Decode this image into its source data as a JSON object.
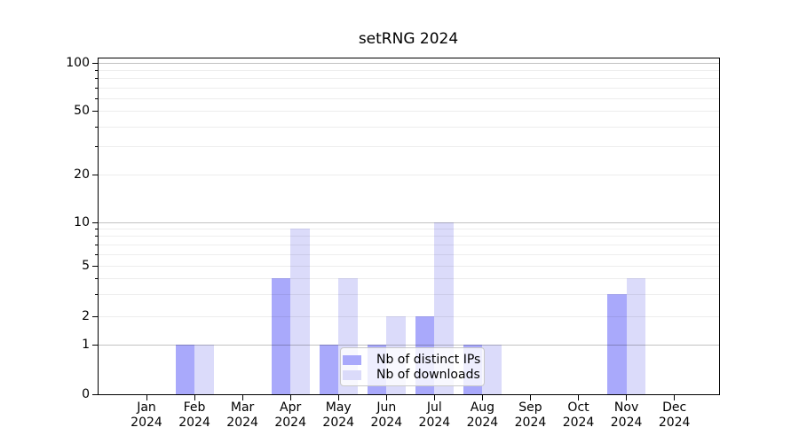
{
  "chart_data": {
    "type": "bar",
    "title": "setRNG 2024",
    "x": [
      {
        "month": "Jan",
        "year": "2024"
      },
      {
        "month": "Feb",
        "year": "2024"
      },
      {
        "month": "Mar",
        "year": "2024"
      },
      {
        "month": "Apr",
        "year": "2024"
      },
      {
        "month": "May",
        "year": "2024"
      },
      {
        "month": "Jun",
        "year": "2024"
      },
      {
        "month": "Jul",
        "year": "2024"
      },
      {
        "month": "Aug",
        "year": "2024"
      },
      {
        "month": "Sep",
        "year": "2024"
      },
      {
        "month": "Oct",
        "year": "2024"
      },
      {
        "month": "Nov",
        "year": "2024"
      },
      {
        "month": "Dec",
        "year": "2024"
      }
    ],
    "series": [
      {
        "name": "Nb of distinct IPs",
        "color": "#a9a9fb",
        "values": [
          0,
          1,
          0,
          4,
          1,
          1,
          2,
          1,
          0,
          0,
          3,
          0
        ]
      },
      {
        "name": "Nb of downloads",
        "color": "#dbdbfa",
        "values": [
          0,
          1,
          0,
          9,
          4,
          2,
          10,
          1,
          0,
          0,
          4,
          0
        ]
      }
    ],
    "y_axis": {
      "scale": "log-like",
      "range": [
        0,
        100
      ],
      "labeled_ticks": [
        0,
        1,
        2,
        5,
        10,
        20,
        50,
        100
      ],
      "decade_gridlines": [
        1,
        10,
        100
      ],
      "minor_gridlines": [
        3,
        4,
        6,
        7,
        8,
        9,
        30,
        40,
        60,
        70,
        80,
        90
      ]
    },
    "grid": true,
    "legend_position": "lower center"
  }
}
